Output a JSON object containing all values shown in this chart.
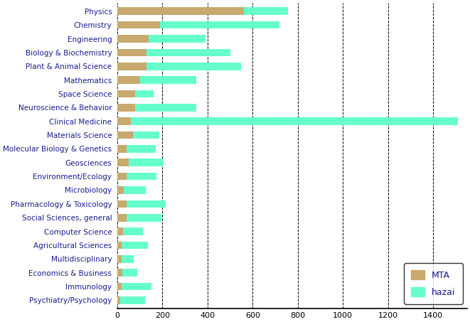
{
  "categories": [
    "Physics",
    "Chemistry",
    "Engineering",
    "Biology & Biochemistry",
    "Plant & Animal Science",
    "Mathematics",
    "Space Science",
    "Neuroscience & Behavior",
    "Clinical Medicine",
    "Materials Science",
    "Molecular Biology & Genetics",
    "Geosciences",
    "Environment/Ecology",
    "Microbiology",
    "Pharmacology & Toxicology",
    "Social Sciences, general",
    "Computer Science",
    "Agricultural Sciences",
    "Multidisciplinary",
    "Economics & Business",
    "Immunology",
    "Psychiatry/Psychology"
  ],
  "mta_values": [
    560,
    190,
    140,
    130,
    130,
    100,
    80,
    80,
    60,
    70,
    40,
    50,
    40,
    30,
    40,
    40,
    25,
    20,
    18,
    22,
    18,
    12
  ],
  "hazai_values": [
    195,
    530,
    250,
    370,
    420,
    250,
    80,
    270,
    1450,
    115,
    130,
    155,
    135,
    95,
    175,
    155,
    90,
    115,
    55,
    65,
    135,
    110
  ],
  "mta_color": "#c8a96e",
  "hazai_color": "#66ffcc",
  "background_color": "#ffffff",
  "text_color": "#1a1a8c",
  "bar_height": 0.55,
  "xlim": [
    0,
    1550
  ],
  "xticks": [
    0,
    200,
    400,
    600,
    800,
    1000,
    1200,
    1400
  ],
  "legend_labels": [
    "MTA",
    "hazai"
  ],
  "figsize": [
    6.61,
    4.53
  ],
  "dpi": 100
}
